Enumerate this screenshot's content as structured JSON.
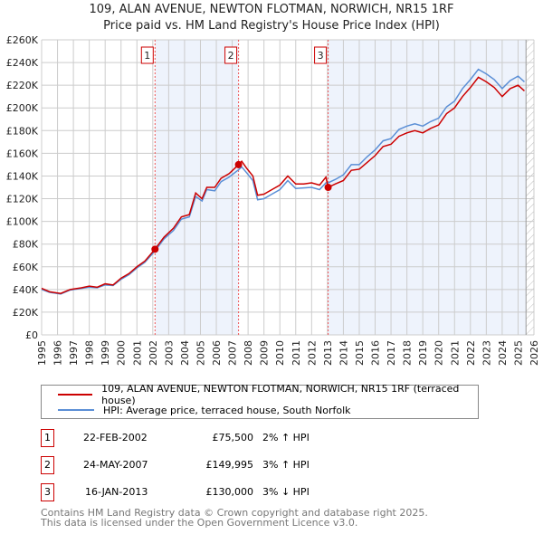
{
  "title": "109, ALAN AVENUE, NEWTON FLOTMAN, NORWICH, NR15 1RF",
  "subtitle": "Price paid vs. HM Land Registry's House Price Index (HPI)",
  "colors": {
    "property": "#cc0000",
    "hpi": "#5b8fd6",
    "shade": "#eef3fc"
  },
  "chart_data": {
    "type": "line",
    "xlim": [
      1995,
      2026
    ],
    "ylim": [
      0,
      260000
    ],
    "yticks": [
      "£0",
      "£20K",
      "£40K",
      "£60K",
      "£80K",
      "£100K",
      "£120K",
      "£140K",
      "£160K",
      "£180K",
      "£200K",
      "£220K",
      "£240K",
      "£260K"
    ],
    "xticks": [
      "1995",
      "1996",
      "1997",
      "1998",
      "1999",
      "2000",
      "2001",
      "2002",
      "2003",
      "2004",
      "2005",
      "2006",
      "2007",
      "2008",
      "2009",
      "2010",
      "2011",
      "2012",
      "2013",
      "2014",
      "2015",
      "2016",
      "2017",
      "2018",
      "2019",
      "2020",
      "2021",
      "2022",
      "2023",
      "2024",
      "2025",
      "2026"
    ],
    "series": [
      {
        "name": "109, ALAN AVENUE, NEWTON FLOTMAN, NORWICH, NR15 1RF (terraced house)",
        "x": [
          1995,
          1995.5,
          1996.2,
          1996.8,
          1997.5,
          1998,
          1998.5,
          1999,
          1999.5,
          2000,
          2000.5,
          2001,
          2001.5,
          2002.14,
          2002.7,
          2003.3,
          2003.8,
          2004.3,
          2004.7,
          2005.1,
          2005.4,
          2005.9,
          2006.3,
          2006.8,
          2007.4,
          2007.6,
          2007.9,
          2008.3,
          2008.6,
          2009,
          2009.5,
          2010,
          2010.5,
          2011,
          2011.5,
          2012,
          2012.5,
          2012.9,
          2013.04,
          2013.5,
          2014,
          2014.5,
          2015,
          2015.5,
          2016,
          2016.5,
          2017,
          2017.5,
          2018,
          2018.5,
          2019,
          2019.5,
          2020,
          2020.5,
          2021,
          2021.5,
          2022,
          2022.5,
          2023,
          2023.5,
          2024,
          2024.5,
          2025,
          2025.4
        ],
        "y": [
          41000,
          38000,
          36500,
          40000,
          41500,
          43000,
          42000,
          45000,
          44000,
          50000,
          54000,
          60000,
          65000,
          75500,
          86000,
          94000,
          104000,
          106000,
          125000,
          120000,
          130000,
          130000,
          138000,
          142000,
          149995,
          153000,
          147000,
          140000,
          123000,
          124000,
          128000,
          132000,
          140000,
          133000,
          133000,
          134000,
          132000,
          139000,
          130000,
          133000,
          136000,
          145000,
          146000,
          152000,
          158000,
          166000,
          168000,
          175000,
          178000,
          180000,
          178000,
          182000,
          185000,
          195000,
          200000,
          210000,
          218000,
          227000,
          223000,
          218000,
          210000,
          217000,
          220000,
          215000
        ]
      },
      {
        "name": "HPI: Average price, terraced house, South Norfolk",
        "x": [
          1995,
          1995.5,
          1996.2,
          1996.8,
          1997.5,
          1998,
          1998.5,
          1999,
          1999.5,
          2000,
          2000.5,
          2001,
          2001.5,
          2002.14,
          2002.7,
          2003.3,
          2003.8,
          2004.3,
          2004.7,
          2005.1,
          2005.4,
          2005.9,
          2006.3,
          2006.8,
          2007.4,
          2007.6,
          2007.9,
          2008.3,
          2008.6,
          2009,
          2009.5,
          2010,
          2010.5,
          2011,
          2011.5,
          2012,
          2012.5,
          2012.9,
          2013.04,
          2013.5,
          2014,
          2014.5,
          2015,
          2015.5,
          2016,
          2016.5,
          2017,
          2017.5,
          2018,
          2018.5,
          2019,
          2019.5,
          2020,
          2020.5,
          2021,
          2021.5,
          2022,
          2022.5,
          2023,
          2023.5,
          2024,
          2024.5,
          2025,
          2025.4
        ],
        "y": [
          40000,
          37500,
          36000,
          39500,
          41000,
          42000,
          41500,
          44000,
          43500,
          49000,
          53000,
          59000,
          64000,
          74000,
          84500,
          92000,
          102000,
          104000,
          122000,
          118000,
          128000,
          127000,
          135000,
          139000,
          145500,
          148000,
          143000,
          136000,
          119000,
          120000,
          124000,
          128000,
          136000,
          129000,
          129500,
          130000,
          128000,
          134000,
          134000,
          137000,
          141000,
          150000,
          150000,
          157000,
          163000,
          171000,
          173000,
          181000,
          184000,
          186000,
          184000,
          188000,
          191000,
          201000,
          206000,
          217000,
          225000,
          234000,
          230000,
          225000,
          217000,
          224000,
          228000,
          223000
        ]
      }
    ],
    "sales": [
      {
        "label": "1",
        "x": 2002.14,
        "y": 75500
      },
      {
        "label": "2",
        "x": 2007.4,
        "y": 149995
      },
      {
        "label": "3",
        "x": 2013.04,
        "y": 130000
      }
    ],
    "shaded_ranges": [
      [
        2002.14,
        2007.4
      ],
      [
        2013.04,
        2025.5
      ]
    ],
    "forecast_hatch_from": 2025.5,
    "legend_placement": "below"
  },
  "legend": [
    "109, ALAN AVENUE, NEWTON FLOTMAN, NORWICH, NR15 1RF (terraced house)",
    "HPI: Average price, terraced house, South Norfolk"
  ],
  "table": [
    {
      "num": "1",
      "date": "22-FEB-2002",
      "price": "£75,500",
      "hpi": "2% ↑ HPI"
    },
    {
      "num": "2",
      "date": "24-MAY-2007",
      "price": "£149,995",
      "hpi": "3% ↑ HPI"
    },
    {
      "num": "3",
      "date": "16-JAN-2013",
      "price": "£130,000",
      "hpi": "3% ↓ HPI"
    }
  ],
  "footer": [
    "Contains HM Land Registry data © Crown copyright and database right 2025.",
    "This data is licensed under the Open Government Licence v3.0."
  ]
}
